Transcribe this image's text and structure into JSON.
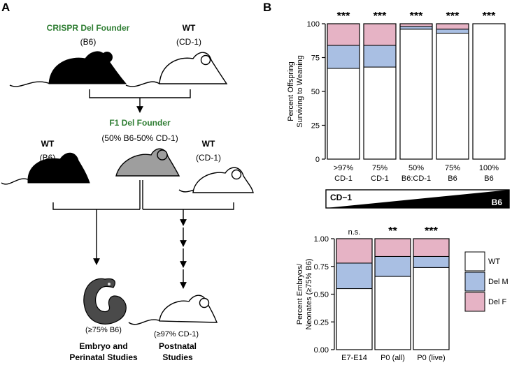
{
  "colors": {
    "wt": "#ffffff",
    "del_m": "#a9bfe3",
    "del_f": "#e6b3c5",
    "founder_green": "#2e7d32",
    "gray_mouse": "#9e9e9e"
  },
  "panelA": {
    "label": "A",
    "crispr_title": "CRISPR Del Founder",
    "crispr_strain": "(B6)",
    "wt1_title": "WT",
    "wt1_strain": "(CD-1)",
    "f1_title": "F1 Del Founder",
    "f1_strain": "(50% B6-50% CD-1)",
    "wt2_title": "WT",
    "wt2_strain": "(B6)",
    "wt3_title": "WT",
    "wt3_strain": "(CD-1)",
    "embryo_pct": "(≥75% B6)",
    "postnatal_pct": "(≥97% CD-1)",
    "embryo_study_1": "Embryo and",
    "embryo_study_2": "Perinatal Studies",
    "postnatal_study_1": "Postnatal",
    "postnatal_study_2": "Studies"
  },
  "panelB": {
    "label": "B",
    "gradient_left": "CD−1",
    "gradient_right": "B6"
  },
  "legend": {
    "wt": "WT",
    "del_m": "Del M",
    "del_f": "Del F"
  },
  "chart_data": [
    {
      "type": "bar",
      "stacked": true,
      "ylabel_1": "Percent Offspring",
      "ylabel_2": "Surviving to Weaning",
      "ylim": [
        0,
        100
      ],
      "yticks": [
        "0",
        "25",
        "50",
        "75",
        "100"
      ],
      "categories": [
        [
          "&gt;97%",
          "CD-1"
        ],
        [
          "75%",
          "CD-1"
        ],
        [
          "50%",
          "B6:CD-1"
        ],
        [
          "75%",
          "B6"
        ],
        [
          "100%",
          "B6"
        ]
      ],
      "category_l1": [
        ">97%",
        "75%",
        "50%",
        "75%",
        "100%"
      ],
      "category_l2": [
        "CD-1",
        "CD-1",
        "B6:CD-1",
        "B6",
        "B6"
      ],
      "significance": [
        "***",
        "***",
        "***",
        "***",
        "***"
      ],
      "series": [
        {
          "name": "WT",
          "values": [
            67,
            68,
            96,
            93,
            100
          ]
        },
        {
          "name": "Del M",
          "values": [
            17,
            16,
            2,
            3,
            0
          ]
        },
        {
          "name": "Del F",
          "values": [
            16,
            16,
            2,
            4,
            0
          ]
        }
      ]
    },
    {
      "type": "bar",
      "stacked": true,
      "ylabel_1": "Percent Embryos/",
      "ylabel_2": "Neonates (≥75% B6)",
      "ylim": [
        0,
        1
      ],
      "yticks": [
        "0.00",
        "0.25",
        "0.50",
        "0.75",
        "1.00"
      ],
      "categories": [
        "E7-E14",
        "P0 (all)",
        "P0 (live)"
      ],
      "significance": [
        "n.s.",
        "**",
        "***"
      ],
      "series": [
        {
          "name": "WT",
          "values": [
            0.55,
            0.66,
            0.74
          ]
        },
        {
          "name": "Del M",
          "values": [
            0.23,
            0.18,
            0.1
          ]
        },
        {
          "name": "Del F",
          "values": [
            0.22,
            0.16,
            0.16
          ]
        }
      ]
    }
  ]
}
